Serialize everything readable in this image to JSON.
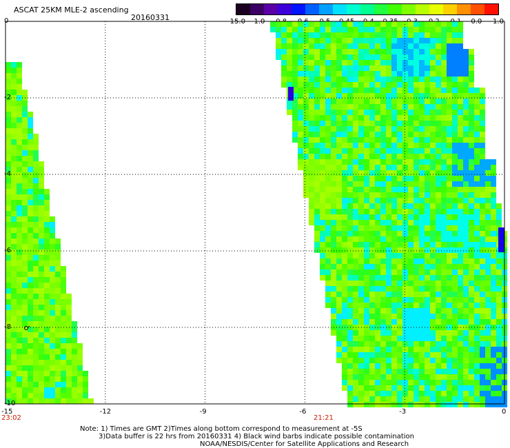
{
  "header": {
    "title": "ASCAT 25KM MLE-2 ascending",
    "date": "20160331"
  },
  "colorbar": {
    "labels": [
      "-15.0",
      "-1.0",
      "-0.8",
      "-0.6",
      "-0.5",
      "-0.45",
      "-0.4",
      "-0.35",
      "-0.3",
      "-0.2",
      "-0.1",
      "0.0",
      "1.0"
    ],
    "colors": [
      "#1c0020",
      "#3a0063",
      "#5a00a8",
      "#3c00d8",
      "#0014ff",
      "#0060ff",
      "#00a0ff",
      "#00e0ff",
      "#00ffd0",
      "#00ff90",
      "#20ff40",
      "#40ff00",
      "#80ff00",
      "#b8ff00",
      "#e8ff00",
      "#ffd000",
      "#ff9000",
      "#ff5000",
      "#ff1000"
    ]
  },
  "map": {
    "x_range": [
      -15,
      0
    ],
    "y_range": [
      0,
      -10
    ],
    "x_ticks": [
      "-15",
      "-12",
      "-9",
      "-6",
      "-3",
      "0"
    ],
    "y_ticks": [
      "0",
      "-2",
      "-4",
      "-6",
      "-8",
      "-10"
    ],
    "grid": true,
    "pass_times": [
      {
        "label": "23:02",
        "lon": -15
      },
      {
        "label": "21:21",
        "lon": -5.8
      }
    ]
  },
  "notes": [
    "Note: 1) Times are GMT 2)Times along bottom correspond to measurement at -5S",
    "3)Data buffer is 22 hrs from 20160331 4) Black wind barbs indicate possible contamination",
    "NOAA/NESDIS/Center for Satellite Applications and Research"
  ]
}
